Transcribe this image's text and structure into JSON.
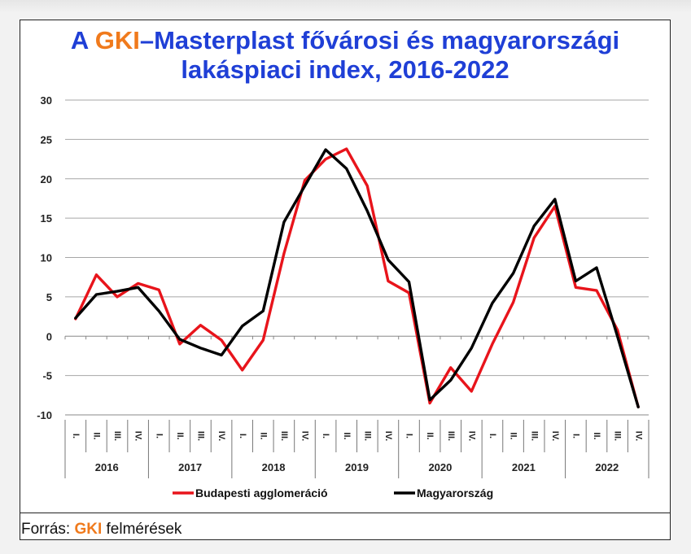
{
  "title": {
    "prefix": "A ",
    "brand": "GKI",
    "rest": "–Masterplast fővárosi és magyarországi",
    "line2": "lakáspiaci index, 2016-2022"
  },
  "source": {
    "prefix": "Forrás: ",
    "brand": "GKI",
    "rest": " felmérések"
  },
  "colors": {
    "brand": "#f07a1c",
    "title": "#1f3fd6",
    "budapest": "#e8141b",
    "magyarorszag": "#000000"
  },
  "chart_data": {
    "type": "line",
    "ylim": [
      -10,
      30
    ],
    "yticks": [
      -10,
      -5,
      0,
      5,
      10,
      15,
      20,
      25,
      30
    ],
    "grid": "horizontal",
    "legend_position": "bottom",
    "quarters": [
      "I.",
      "II.",
      "III.",
      "IV.",
      "I.",
      "II.",
      "III.",
      "IV.",
      "I.",
      "II.",
      "III.",
      "IV.",
      "I.",
      "II.",
      "III.",
      "IV.",
      "I.",
      "II.",
      "III.",
      "IV.",
      "I.",
      "II.",
      "III.",
      "IV.",
      "I.",
      "II.",
      "III.",
      "IV."
    ],
    "years": [
      "2016",
      "2017",
      "2018",
      "2019",
      "2020",
      "2021",
      "2022"
    ],
    "series": [
      {
        "name": "Budapesti agglomeráció",
        "color": "#e8141b",
        "values": [
          2.2,
          7.8,
          5.0,
          6.7,
          5.9,
          -1.0,
          1.4,
          -0.5,
          -4.3,
          -0.5,
          10.5,
          19.8,
          22.5,
          23.8,
          19.1,
          7.0,
          5.5,
          -8.5,
          -4.0,
          -7.0,
          -1.0,
          4.3,
          12.5,
          16.5,
          6.2,
          5.8,
          0.8,
          -9.0
        ]
      },
      {
        "name": "Magyarország",
        "color": "#000000",
        "values": [
          2.3,
          5.3,
          5.7,
          6.2,
          3.2,
          -0.4,
          -1.5,
          -2.4,
          1.3,
          3.2,
          14.5,
          19.1,
          23.7,
          21.3,
          15.9,
          9.7,
          6.9,
          -8.1,
          -5.6,
          -1.5,
          4.2,
          8.0,
          14.0,
          17.4,
          7.0,
          8.7,
          0.0,
          -9.0
        ]
      }
    ]
  }
}
